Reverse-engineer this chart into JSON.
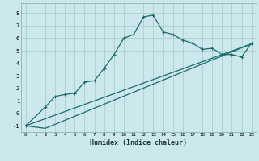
{
  "xlabel": "Humidex (Indice chaleur)",
  "bg_color": "#cce8ec",
  "line_color": "#1a6b6b",
  "grid_color": "#aacfcf",
  "xlim": [
    -0.5,
    23.5
  ],
  "ylim": [
    -1.5,
    8.8
  ],
  "yticks": [
    -1,
    0,
    1,
    2,
    3,
    4,
    5,
    6,
    7,
    8
  ],
  "xticks": [
    0,
    1,
    2,
    3,
    4,
    5,
    6,
    7,
    8,
    9,
    10,
    11,
    12,
    13,
    14,
    15,
    16,
    17,
    18,
    19,
    20,
    21,
    22,
    23
  ],
  "curve1_x": [
    0,
    2,
    3,
    4,
    5,
    6,
    7,
    8,
    9,
    10,
    11,
    12,
    13,
    14,
    15,
    16,
    17,
    18,
    19,
    20,
    21,
    22,
    23
  ],
  "curve1_y": [
    -1.0,
    0.5,
    1.35,
    1.5,
    1.6,
    2.5,
    2.6,
    3.6,
    4.7,
    6.0,
    6.3,
    7.7,
    7.85,
    6.5,
    6.3,
    5.85,
    5.6,
    5.1,
    5.2,
    4.7,
    4.7,
    4.5,
    5.6
  ],
  "curve2_x": [
    0,
    2,
    23
  ],
  "curve2_y": [
    -1.0,
    -1.2,
    5.55
  ],
  "curve3_x": [
    0,
    23
  ],
  "curve3_y": [
    -1.0,
    5.55
  ]
}
